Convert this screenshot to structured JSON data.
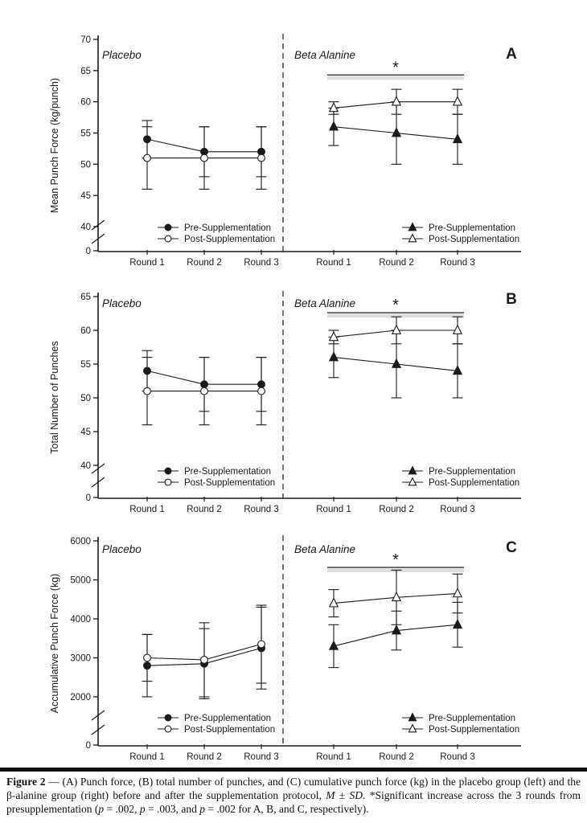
{
  "colors": {
    "ink": "#1a1a1a",
    "significance_shadow": "#d8d8d8",
    "background": "#ffffff"
  },
  "chart_data": [
    {
      "type": "line",
      "panel": "A",
      "ylabel": "Mean Punch Force (kg/punch)",
      "ylim": [
        40,
        70
      ],
      "yticks": [
        40,
        45,
        50,
        55,
        60,
        65,
        70
      ],
      "zero_label": "0",
      "axis_break": true,
      "grid": false,
      "categories": [
        "Round 1",
        "Round 2",
        "Round 3"
      ],
      "groups": [
        {
          "label": "Placebo",
          "marker": "circle",
          "series": [
            {
              "name": "Pre-Supplementation",
              "style": "filled",
              "means": [
                54,
                52,
                52
              ],
              "sd": [
                3,
                4,
                4
              ]
            },
            {
              "name": "Post-Supplementation",
              "style": "open",
              "means": [
                51,
                51,
                51
              ],
              "sd": [
                5,
                5,
                5
              ]
            }
          ]
        },
        {
          "label": "Beta Alanine",
          "marker": "triangle",
          "significance": {
            "symbol": "*",
            "bar_value": 64.3,
            "spans": [
              "Round 1",
              "Round 3"
            ]
          },
          "series": [
            {
              "name": "Pre-Supplementation",
              "style": "filled",
              "means": [
                56,
                55,
                54
              ],
              "sd": [
                3,
                5,
                4
              ]
            },
            {
              "name": "Post-Supplementation",
              "style": "open",
              "means": [
                59,
                60,
                60
              ],
              "sd": [
                1,
                2,
                2
              ]
            }
          ]
        }
      ]
    },
    {
      "type": "line",
      "panel": "B",
      "ylabel": "Total Number of Punches",
      "ylim": [
        40,
        65
      ],
      "yticks": [
        40,
        45,
        50,
        55,
        60,
        65
      ],
      "zero_label": "0",
      "axis_break": true,
      "grid": false,
      "categories": [
        "Round 1",
        "Round 2",
        "Round 3"
      ],
      "groups": [
        {
          "label": "Placebo",
          "marker": "circle",
          "series": [
            {
              "name": "Pre-Supplementation",
              "style": "filled",
              "means": [
                54,
                52,
                52
              ],
              "sd": [
                3,
                4,
                4
              ]
            },
            {
              "name": "Post-Supplementation",
              "style": "open",
              "means": [
                51,
                51,
                51
              ],
              "sd": [
                5,
                5,
                5
              ]
            }
          ]
        },
        {
          "label": "Beta Alanine",
          "marker": "triangle",
          "significance": {
            "symbol": "*",
            "bar_value": 62.6,
            "spans": [
              "Round 1",
              "Round 3"
            ]
          },
          "series": [
            {
              "name": "Pre-Supplementation",
              "style": "filled",
              "means": [
                56,
                55,
                54
              ],
              "sd": [
                3,
                5,
                4
              ]
            },
            {
              "name": "Post-Supplementation",
              "style": "open",
              "means": [
                59,
                60,
                60
              ],
              "sd": [
                1,
                2,
                2
              ]
            }
          ]
        }
      ]
    },
    {
      "type": "line",
      "panel": "C",
      "ylabel": "Accumulative Punch Force (kg)",
      "ylim": [
        2000,
        6000
      ],
      "yticks": [
        2000,
        3000,
        4000,
        5000,
        6000
      ],
      "zero_label": "0",
      "axis_break": true,
      "grid": false,
      "categories": [
        "Round 1",
        "Round 2",
        "Round 3"
      ],
      "groups": [
        {
          "label": "Placebo",
          "marker": "circle",
          "series": [
            {
              "name": "Pre-Supplementation",
              "style": "filled",
              "means": [
                2800,
                2850,
                3250
              ],
              "sd": [
                800,
                900,
                1050
              ]
            },
            {
              "name": "Post-Supplementation",
              "style": "open",
              "means": [
                3000,
                2950,
                3350
              ],
              "sd": [
                600,
                950,
                1000
              ]
            }
          ]
        },
        {
          "label": "Beta Alanine",
          "marker": "triangle",
          "significance": {
            "symbol": "*",
            "bar_value": 5320,
            "spans": [
              "Round 1",
              "Round 3"
            ]
          },
          "series": [
            {
              "name": "Pre-Supplementation",
              "style": "filled",
              "means": [
                3300,
                3700,
                3850
              ],
              "sd": [
                550,
                500,
                575
              ]
            },
            {
              "name": "Post-Supplementation",
              "style": "open",
              "means": [
                4400,
                4550,
                4650
              ],
              "sd": [
                350,
                700,
                500
              ]
            }
          ]
        }
      ]
    }
  ],
  "caption": {
    "label": "Figure 2",
    "part1": " — (A) Punch force, (B) total number of punches, and (C) cumulative punch force (kg) in the placebo group (left) and the β-alanine group (right) before and after the supplementation protocol, ",
    "italic_m": "M",
    "part2": " ± ",
    "italic_sd": "SD",
    "part3": ". *Significant increase across the 3 rounds from presupplementation (",
    "p1": "p",
    "part4": " = .002, ",
    "p2": "p",
    "part5": " = .003, and ",
    "p3": "p",
    "part6": " = .002 for A, B, and C, respectively)."
  }
}
